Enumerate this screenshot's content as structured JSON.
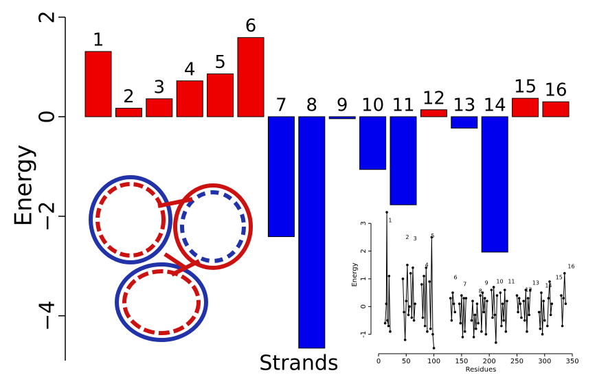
{
  "chart_data": [
    {
      "type": "bar",
      "y_label": "Energy",
      "x_label": "Strands",
      "categories": [
        "1",
        "2",
        "3",
        "4",
        "5",
        "6",
        "7",
        "8",
        "9",
        "10",
        "11",
        "12",
        "13",
        "14",
        "15",
        "16"
      ],
      "values": [
        1.31,
        0.17,
        0.36,
        0.72,
        0.86,
        1.59,
        -2.41,
        -4.65,
        -0.04,
        -1.06,
        -1.77,
        0.14,
        -0.23,
        -2.72,
        0.37,
        0.3
      ],
      "colors": [
        "#ee0000",
        "#ee0000",
        "#ee0000",
        "#ee0000",
        "#ee0000",
        "#ee0000",
        "#0000ee",
        "#0000ee",
        "#0000ee",
        "#0000ee",
        "#0000ee",
        "#ee0000",
        "#0000ee",
        "#0000ee",
        "#ee0000",
        "#ee0000"
      ],
      "ylim": [
        -4.9,
        2.0
      ],
      "yticks": [
        {
          "value": -4,
          "label": "−4"
        },
        {
          "value": -2,
          "label": "−2"
        },
        0,
        2
      ]
    },
    {
      "type": "line",
      "y_label": "Energy",
      "x_label": "Residues",
      "color": "#000000",
      "x": [
        12,
        14,
        15,
        16,
        18,
        19,
        21,
        null,
        44,
        46,
        48,
        50,
        52,
        54,
        56,
        null,
        58,
        60,
        62,
        64,
        66,
        null,
        78,
        80,
        82,
        84,
        86,
        88,
        null,
        92,
        94,
        96,
        98,
        100,
        null,
        130,
        132,
        134,
        136,
        138,
        null,
        146,
        148,
        150,
        152,
        154,
        156,
        158,
        null,
        168,
        170,
        172,
        174,
        176,
        178,
        180,
        null,
        184,
        186,
        188,
        190,
        192,
        194,
        196,
        null,
        204,
        206,
        208,
        210,
        212,
        214,
        null,
        220,
        222,
        224,
        226,
        228,
        230,
        232,
        null,
        250,
        252,
        254,
        256,
        258,
        null,
        262,
        264,
        266,
        268,
        270,
        272,
        274,
        null,
        290,
        292,
        294,
        296,
        298,
        300,
        null,
        305,
        307,
        309,
        311,
        313,
        null,
        330,
        332,
        334,
        336,
        338
      ],
      "values": [
        -0.6,
        0.1,
        3.4,
        -0.5,
        -0.7,
        1.1,
        -0.9,
        null,
        1.0,
        -0.2,
        -1.2,
        0.2,
        1.5,
        -0.3,
        0.0,
        null,
        1.2,
        -0.4,
        1.4,
        -0.5,
        0.1,
        null,
        0.8,
        -0.4,
        1.1,
        -0.7,
        1.4,
        -0.9,
        null,
        0.9,
        -0.8,
        2.5,
        -1.0,
        -1.5,
        null,
        0.3,
        -0.5,
        0.5,
        0.1,
        -0.2,
        null,
        0.1,
        -0.6,
        0.4,
        -1.1,
        0.3,
        -0.9,
        0.3,
        null,
        -0.5,
        0.2,
        -1.1,
        -0.3,
        -0.8,
        0.1,
        -0.6,
        null,
        0.4,
        -0.9,
        0.5,
        -0.2,
        0.3,
        -1.0,
        0.2,
        null,
        0.6,
        -0.4,
        0.7,
        -0.3,
        -1.3,
        0.4,
        null,
        0.5,
        -0.7,
        0.1,
        -0.5,
        0.6,
        -0.9,
        0.2,
        null,
        0.4,
        -0.2,
        0.3,
        0.1,
        -0.4,
        null,
        0.2,
        -0.5,
        0.6,
        -0.9,
        0.3,
        -0.3,
        0.6,
        null,
        -0.2,
        -0.8,
        0.5,
        -1.0,
        0.2,
        -0.5,
        null,
        -0.7,
        0.3,
        0.9,
        -0.3,
        0.1,
        null,
        0.4,
        -0.7,
        0.3,
        1.2,
        0.1
      ],
      "xlim": [
        -13,
        358
      ],
      "xticks": [
        0,
        50,
        100,
        150,
        200,
        250,
        300,
        350
      ],
      "ylim": [
        -1.7,
        3.5
      ],
      "yticks": [
        -1,
        0,
        1,
        2,
        3
      ],
      "annotations": [
        {
          "text": "1",
          "x": 21,
          "y": 3.1
        },
        {
          "text": "2",
          "x": 52,
          "y": 2.5
        },
        {
          "text": "3",
          "x": 66,
          "y": 2.45
        },
        {
          "text": "4",
          "x": 87,
          "y": 1.5
        },
        {
          "text": "5",
          "x": 98,
          "y": 2.55
        },
        {
          "text": "6",
          "x": 139,
          "y": 1.05
        },
        {
          "text": "7",
          "x": 156,
          "y": 0.8
        },
        {
          "text": "8",
          "x": 184,
          "y": 0.55
        },
        {
          "text": "9",
          "x": 195,
          "y": 0.85
        },
        {
          "text": "10",
          "x": 219,
          "y": 0.9
        },
        {
          "text": "11",
          "x": 240,
          "y": 0.9
        },
        {
          "text": "12",
          "x": 271,
          "y": 0.6
        },
        {
          "text": "13",
          "x": 284,
          "y": 0.85
        },
        {
          "text": "14",
          "x": 307,
          "y": 0.75
        },
        {
          "text": "15",
          "x": 326,
          "y": 1.05
        },
        {
          "text": "16",
          "x": 348,
          "y": 1.45
        }
      ]
    }
  ]
}
